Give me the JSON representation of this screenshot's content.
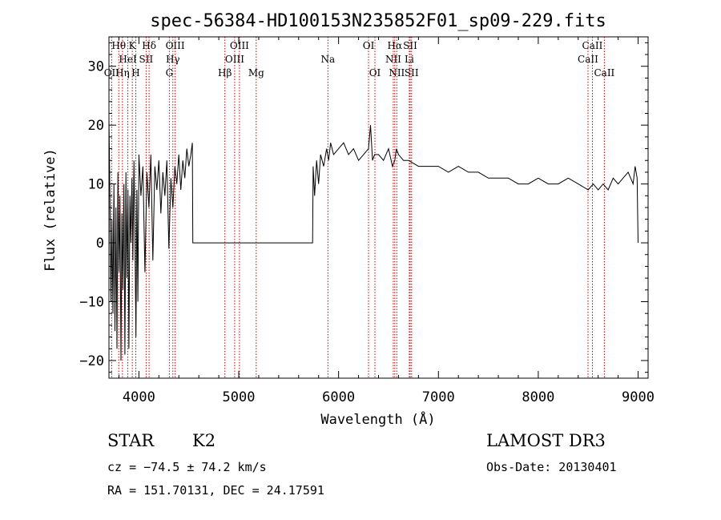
{
  "chart_data": {
    "type": "line",
    "title": "spec-56384-HD100153N235852F01_sp09-229.fits",
    "xlabel": "Wavelength (Å)",
    "ylabel": "Flux (relative)",
    "xlim": [
      3700,
      9100
    ],
    "ylim": [
      -23,
      35
    ],
    "xticks": [
      4000,
      5000,
      6000,
      7000,
      8000,
      9000
    ],
    "yticks": [
      -20,
      -10,
      0,
      10,
      20,
      30
    ],
    "xtick_labels": [
      "4000",
      "5000",
      "6000",
      "7000",
      "8000",
      "9000"
    ],
    "ytick_labels": [
      "−20",
      "−10",
      "0",
      "10",
      "20",
      "30"
    ],
    "series": [
      {
        "name": "flux",
        "x": [
          3700,
          3710,
          3720,
          3730,
          3740,
          3750,
          3760,
          3770,
          3780,
          3790,
          3800,
          3810,
          3820,
          3830,
          3840,
          3850,
          3860,
          3870,
          3880,
          3890,
          3900,
          3910,
          3920,
          3930,
          3940,
          3950,
          3960,
          3970,
          3980,
          3990,
          4000,
          4020,
          4040,
          4060,
          4080,
          4100,
          4120,
          4140,
          4160,
          4180,
          4200,
          4220,
          4240,
          4260,
          4280,
          4300,
          4320,
          4340,
          4360,
          4380,
          4400,
          4420,
          4440,
          4460,
          4480,
          4500,
          4520,
          4535,
          4540,
          5740,
          5745,
          5760,
          5780,
          5800,
          5820,
          5850,
          5880,
          5900,
          5920,
          5950,
          6000,
          6050,
          6100,
          6150,
          6200,
          6250,
          6300,
          6320,
          6340,
          6360,
          6400,
          6450,
          6500,
          6540,
          6563,
          6580,
          6600,
          6650,
          6700,
          6800,
          6900,
          7000,
          7100,
          7200,
          7300,
          7400,
          7500,
          7600,
          7700,
          7800,
          7900,
          8000,
          8100,
          8200,
          8300,
          8400,
          8500,
          8550,
          8600,
          8650,
          8700,
          8750,
          8800,
          8850,
          8900,
          8950,
          8970,
          8990,
          9000
        ],
        "y": [
          21,
          8,
          -10,
          4,
          -12,
          10,
          -15,
          6,
          -18,
          12,
          -5,
          8,
          -20,
          5,
          -8,
          10,
          -19,
          12,
          -6,
          9,
          -18,
          8,
          0,
          11,
          -3,
          14,
          2,
          -16,
          9,
          -10,
          15,
          8,
          13,
          -5,
          12,
          6,
          15,
          -3,
          13,
          9,
          14,
          5,
          12,
          8,
          14,
          -1,
          11,
          6,
          13,
          10,
          15,
          9,
          14,
          11,
          16,
          13,
          15,
          17,
          0,
          0,
          13,
          8,
          14,
          10,
          15,
          13,
          16,
          14,
          17,
          15,
          16,
          17,
          15,
          16,
          14,
          15,
          16,
          20,
          14,
          15,
          15,
          14,
          16,
          13,
          14,
          16,
          15,
          14,
          14,
          13,
          13,
          13,
          12,
          13,
          12,
          12,
          11,
          11,
          11,
          10,
          10,
          11,
          10,
          10,
          11,
          10,
          9,
          10,
          9,
          10,
          9,
          11,
          10,
          11,
          12,
          10,
          13,
          11,
          0
        ]
      }
    ],
    "line_markers": [
      {
        "name": "Hθ",
        "wl": 3798,
        "row": 0
      },
      {
        "name": "K",
        "wl": 3934,
        "row": 0
      },
      {
        "name": "Hδ",
        "wl": 4102,
        "row": 0
      },
      {
        "name": "OIII",
        "wl": 4363,
        "row": 0
      },
      {
        "name": "OIII",
        "wl": 5007,
        "row": 0
      },
      {
        "name": "OI",
        "wl": 6300,
        "row": 0
      },
      {
        "name": "Hα",
        "wl": 6563,
        "row": 0
      },
      {
        "name": "SII",
        "wl": 6717,
        "row": 0
      },
      {
        "name": "CaII",
        "wl": 8542,
        "row": 0
      },
      {
        "name": "HeI",
        "wl": 3889,
        "row": 1
      },
      {
        "name": "SII",
        "wl": 4072,
        "row": 1
      },
      {
        "name": "Hγ",
        "wl": 4340,
        "row": 1
      },
      {
        "name": "OIII",
        "wl": 4959,
        "row": 1
      },
      {
        "name": "Na",
        "wl": 5893,
        "row": 1
      },
      {
        "name": "NII",
        "wl": 6548,
        "row": 1
      },
      {
        "name": "Li",
        "wl": 6708,
        "row": 1
      },
      {
        "name": "CaII",
        "wl": 8498,
        "row": 1
      },
      {
        "name": "OII",
        "wl": 3727,
        "row": 2
      },
      {
        "name": "Hη",
        "wl": 3835,
        "row": 2
      },
      {
        "name": "H",
        "wl": 3969,
        "row": 2
      },
      {
        "name": "G",
        "wl": 4305,
        "row": 2
      },
      {
        "name": "Hβ",
        "wl": 4861,
        "row": 2
      },
      {
        "name": "Mg",
        "wl": 5175,
        "row": 2
      },
      {
        "name": "OI",
        "wl": 6364,
        "row": 2
      },
      {
        "name": "NII",
        "wl": 6583,
        "row": 2
      },
      {
        "name": "SII",
        "wl": 6731,
        "row": 2
      },
      {
        "name": "CaII",
        "wl": 8662,
        "row": 2
      }
    ],
    "colors": {
      "spectrum": "#000000",
      "line_marker": "#cc0000",
      "axes": "#000000"
    }
  },
  "info": {
    "object_class": "STAR",
    "subclass": "K2",
    "survey": "LAMOST DR3",
    "cz": "cz = −74.5 ± 74.2 km/s",
    "obs_date": "Obs-Date: 20130401",
    "coords": "RA = 151.70131, DEC =  24.17591"
  }
}
